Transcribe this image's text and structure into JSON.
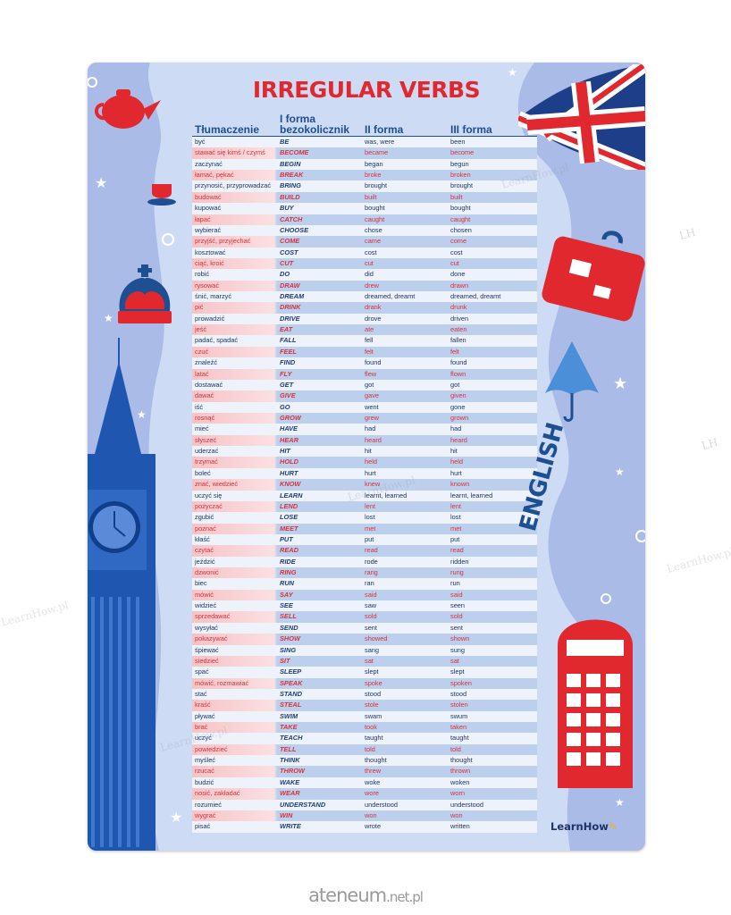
{
  "title": "IRREGULAR VERBS",
  "columns": [
    "Tłumaczenie",
    "I forma\nbezokolicznik",
    "II forma",
    "III forma"
  ],
  "columns_display": {
    "c1": "Tłumaczenie",
    "c2a": "I forma",
    "c2b": "bezokolicznik",
    "c3": "II forma",
    "c4": "III forma"
  },
  "rows": [
    [
      "być",
      "BE",
      "was, were",
      "been"
    ],
    [
      "stawać się kimś / czymś",
      "BECOME",
      "became",
      "become"
    ],
    [
      "zaczynać",
      "BEGIN",
      "began",
      "begun"
    ],
    [
      "łamać, pękać",
      "BREAK",
      "broke",
      "broken"
    ],
    [
      "przynosić, przyprowadzać",
      "BRING",
      "brought",
      "brought"
    ],
    [
      "budować",
      "BUILD",
      "built",
      "built"
    ],
    [
      "kupować",
      "BUY",
      "bought",
      "bought"
    ],
    [
      "łapać",
      "CATCH",
      "caught",
      "caught"
    ],
    [
      "wybierać",
      "CHOOSE",
      "chose",
      "chosen"
    ],
    [
      "przyjść, przyjechać",
      "COME",
      "came",
      "come"
    ],
    [
      "kosztować",
      "COST",
      "cost",
      "cost"
    ],
    [
      "ciąć, kroić",
      "CUT",
      "cut",
      "cut"
    ],
    [
      "robić",
      "DO",
      "did",
      "done"
    ],
    [
      "rysować",
      "DRAW",
      "drew",
      "drawn"
    ],
    [
      "śnić, marzyć",
      "DREAM",
      "dreamed, dreamt",
      "dreamed, dreamt"
    ],
    [
      "pić",
      "DRINK",
      "drank",
      "drunk"
    ],
    [
      "prowadzić",
      "DRIVE",
      "drove",
      "driven"
    ],
    [
      "jeść",
      "EAT",
      "ate",
      "eaten"
    ],
    [
      "padać, spadać",
      "FALL",
      "fell",
      "fallen"
    ],
    [
      "czuć",
      "FEEL",
      "felt",
      "felt"
    ],
    [
      "znaleźć",
      "FIND",
      "found",
      "found"
    ],
    [
      "latać",
      "FLY",
      "flew",
      "flown"
    ],
    [
      "dostawać",
      "GET",
      "got",
      "got"
    ],
    [
      "dawać",
      "GIVE",
      "gave",
      "given"
    ],
    [
      "iść",
      "GO",
      "went",
      "gone"
    ],
    [
      "rosnąć",
      "GROW",
      "grew",
      "grown"
    ],
    [
      "mieć",
      "HAVE",
      "had",
      "had"
    ],
    [
      "słyszeć",
      "HEAR",
      "heard",
      "heard"
    ],
    [
      "uderzać",
      "HIT",
      "hit",
      "hit"
    ],
    [
      "trzymać",
      "HOLD",
      "held",
      "held"
    ],
    [
      "boleć",
      "HURT",
      "hurt",
      "hurt"
    ],
    [
      "znać, wiedzieć",
      "KNOW",
      "knew",
      "known"
    ],
    [
      "uczyć się",
      "LEARN",
      "learnt, learned",
      "learnt, learned"
    ],
    [
      "pożyczać",
      "LEND",
      "lent",
      "lent"
    ],
    [
      "zgubić",
      "LOSE",
      "lost",
      "lost"
    ],
    [
      "poznać",
      "MEET",
      "met",
      "met"
    ],
    [
      "kłaść",
      "PUT",
      "put",
      "put"
    ],
    [
      "czytać",
      "READ",
      "read",
      "read"
    ],
    [
      "jeździć",
      "RIDE",
      "rode",
      "ridden"
    ],
    [
      "dzwonić",
      "RING",
      "rang",
      "rung"
    ],
    [
      "biec",
      "RUN",
      "ran",
      "run"
    ],
    [
      "mówić",
      "SAY",
      "said",
      "said"
    ],
    [
      "widzieć",
      "SEE",
      "saw",
      "seen"
    ],
    [
      "sprzedawać",
      "SELL",
      "sold",
      "sold"
    ],
    [
      "wysyłać",
      "SEND",
      "sent",
      "sent"
    ],
    [
      "pokazywać",
      "SHOW",
      "showed",
      "shown"
    ],
    [
      "śpiewać",
      "SING",
      "sang",
      "sung"
    ],
    [
      "siedzieć",
      "SIT",
      "sat",
      "sat"
    ],
    [
      "spać",
      "SLEEP",
      "slept",
      "slept"
    ],
    [
      "mówić, rozmawiać",
      "SPEAK",
      "spoke",
      "spoken"
    ],
    [
      "stać",
      "STAND",
      "stood",
      "stood"
    ],
    [
      "kraść",
      "STEAL",
      "stole",
      "stolen"
    ],
    [
      "pływać",
      "SWIM",
      "swam",
      "swum"
    ],
    [
      "brać",
      "TAKE",
      "took",
      "taken"
    ],
    [
      "uczyć",
      "TEACH",
      "taught",
      "taught"
    ],
    [
      "powiedzieć",
      "TELL",
      "told",
      "told"
    ],
    [
      "myśleć",
      "THINK",
      "thought",
      "thought"
    ],
    [
      "rzucać",
      "THROW",
      "threw",
      "thrown"
    ],
    [
      "budzić",
      "WAKE",
      "woke",
      "woken"
    ],
    [
      "nosić, zakładać",
      "WEAR",
      "wore",
      "worn"
    ],
    [
      "rozumieć",
      "UNDERSTAND",
      "understood",
      "understood"
    ],
    [
      "wygrać",
      "WIN",
      "won",
      "won"
    ],
    [
      "pisać",
      "WRITE",
      "wrote",
      "written"
    ]
  ],
  "side_label": "ENGLISH",
  "logo": {
    "text": "LearnHow",
    "icon": "pencil-icon"
  },
  "watermarks": [
    "LearnHow.pl",
    "LH"
  ],
  "footer": {
    "main": "ateneum",
    "suffix": ".net.pl"
  },
  "colors": {
    "red": "#e0282e",
    "blue": "#1d4f91",
    "background": "#a9bbe6",
    "panel": "#cfdcf5"
  }
}
